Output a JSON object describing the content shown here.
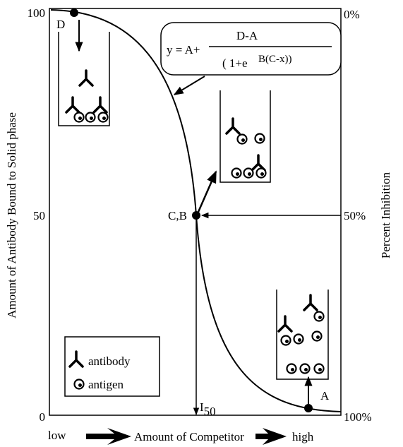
{
  "y_axis": {
    "label": "Amount of Antibody Bound  to Solid phase",
    "ticks": [
      "100",
      "50",
      "0"
    ]
  },
  "right_axis": {
    "label": "Percent Inhibition",
    "ticks": [
      "0%",
      "50%",
      "100%"
    ]
  },
  "x_axis": {
    "low": "low",
    "label": "Amount of Competitor",
    "high": "high"
  },
  "points": {
    "d": "D",
    "cb": "C,B",
    "a": "A"
  },
  "i50": {
    "base": "I",
    "sub": "50"
  },
  "equation": {
    "lhs": "y = A+",
    "numerator": "D-A",
    "denominator": "( 1+e",
    "exponent": "B(C-x))"
  },
  "legend": {
    "antibody": "antibody",
    "antigen": "antigen"
  }
}
